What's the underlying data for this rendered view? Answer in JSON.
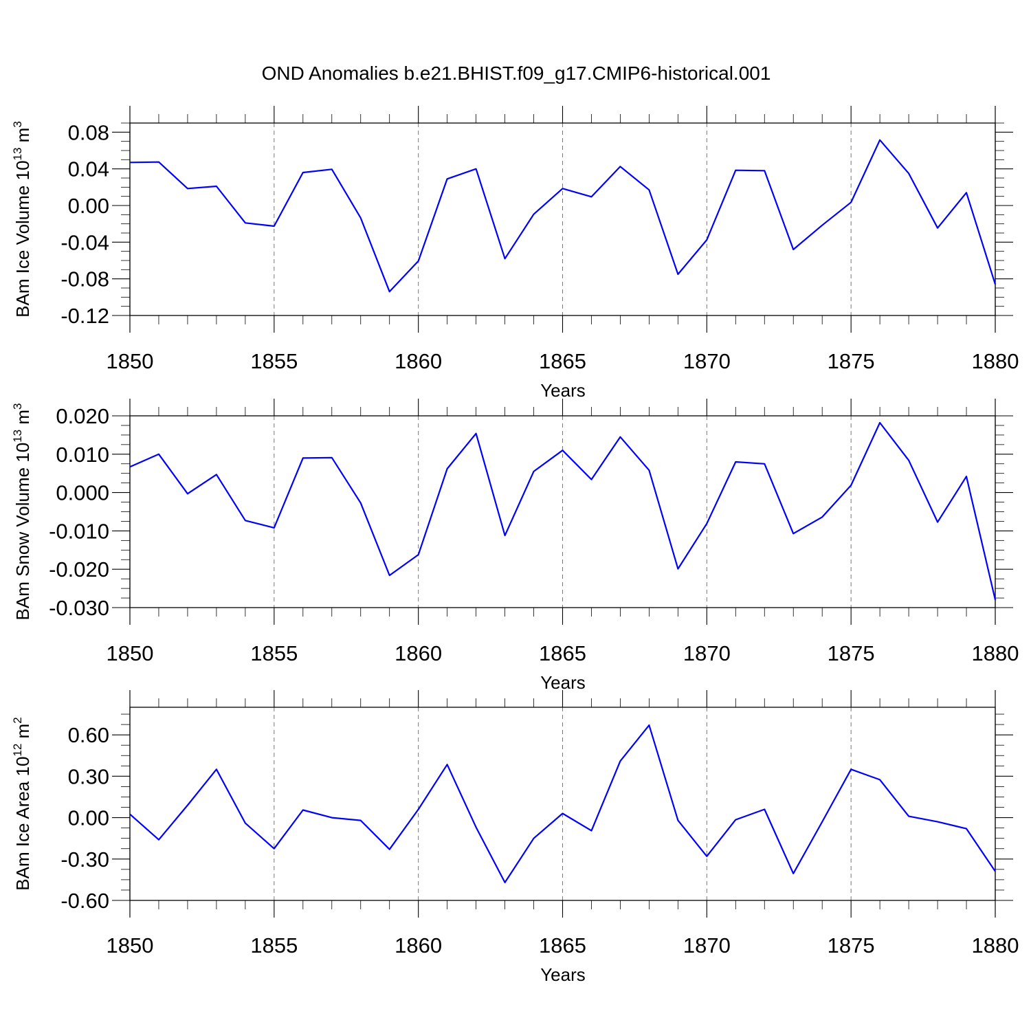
{
  "title": "OND Anomalies b.e21.BHIST.f09_g17.CMIP6-historical.001",
  "colors": {
    "series": "#0000ff",
    "axes": "#000000",
    "grid": "#777777"
  },
  "chart_data": [
    {
      "type": "line",
      "ylabel": "BAm Ice Volume 10",
      "ylabel_exp": "13",
      "ylabel_unit": " m",
      "ylabel_unit_exp": "3",
      "xlabel": "Years",
      "xlim": [
        1850,
        1880
      ],
      "ylim": [
        -0.12,
        0.09
      ],
      "yticks": [
        -0.12,
        -0.08,
        -0.04,
        0.0,
        0.04,
        0.08
      ],
      "ytick_labels": [
        "-0.12",
        "-0.08",
        "-0.04",
        "0.00",
        "0.04",
        "0.08"
      ],
      "xticks": [
        1850,
        1855,
        1860,
        1865,
        1870,
        1875,
        1880
      ],
      "xtick_labels": [
        "1850",
        "1855",
        "1860",
        "1865",
        "1870",
        "1875",
        "1880"
      ],
      "grid": "dashed vertical at major x ticks",
      "x": [
        1850,
        1851,
        1852,
        1853,
        1854,
        1855,
        1856,
        1857,
        1858,
        1859,
        1860,
        1861,
        1862,
        1863,
        1864,
        1865,
        1866,
        1867,
        1868,
        1869,
        1870,
        1871,
        1872,
        1873,
        1874,
        1875,
        1876,
        1877,
        1878,
        1879,
        1880
      ],
      "values": [
        0.047,
        0.0475,
        0.0185,
        0.021,
        -0.019,
        -0.0225,
        0.036,
        0.0395,
        -0.0135,
        -0.094,
        -0.0605,
        0.029,
        0.04,
        -0.058,
        -0.0095,
        0.0185,
        0.0095,
        0.0425,
        0.017,
        -0.075,
        -0.0375,
        0.0385,
        0.038,
        -0.048,
        -0.0215,
        0.0035,
        0.0715,
        0.035,
        -0.0245,
        0.014,
        -0.086
      ]
    },
    {
      "type": "line",
      "ylabel": "BAm Snow Volume 10",
      "ylabel_exp": "13",
      "ylabel_unit": " m",
      "ylabel_unit_exp": "3",
      "xlabel": "Years",
      "xlim": [
        1850,
        1880
      ],
      "ylim": [
        -0.03,
        0.02
      ],
      "yticks": [
        -0.03,
        -0.02,
        -0.01,
        0.0,
        0.01,
        0.02
      ],
      "ytick_labels": [
        "-0.030",
        "-0.020",
        "-0.010",
        "0.000",
        "0.010",
        "0.020"
      ],
      "xticks": [
        1850,
        1855,
        1860,
        1865,
        1870,
        1875,
        1880
      ],
      "xtick_labels": [
        "1850",
        "1855",
        "1860",
        "1865",
        "1870",
        "1875",
        "1880"
      ],
      "grid": "dashed vertical at major x ticks",
      "x": [
        1850,
        1851,
        1852,
        1853,
        1854,
        1855,
        1856,
        1857,
        1858,
        1859,
        1860,
        1861,
        1862,
        1863,
        1864,
        1865,
        1866,
        1867,
        1868,
        1869,
        1870,
        1871,
        1872,
        1873,
        1874,
        1875,
        1876,
        1877,
        1878,
        1879,
        1880
      ],
      "values": [
        0.0067,
        0.01,
        -0.0003,
        0.0047,
        -0.0073,
        -0.0092,
        0.009,
        0.0091,
        -0.0027,
        -0.0216,
        -0.0162,
        0.0062,
        0.0154,
        -0.0112,
        0.0055,
        0.011,
        0.0034,
        0.0145,
        0.0058,
        -0.0199,
        -0.0081,
        0.008,
        0.0075,
        -0.0107,
        -0.0064,
        0.0019,
        0.0182,
        0.0084,
        -0.0077,
        0.0042,
        -0.028
      ]
    },
    {
      "type": "line",
      "ylabel": "BAm Ice Area 10",
      "ylabel_exp": "12",
      "ylabel_unit": " m",
      "ylabel_unit_exp": "2",
      "xlabel": "Years",
      "xlim": [
        1850,
        1880
      ],
      "ylim": [
        -0.6,
        0.8
      ],
      "yticks": [
        -0.6,
        -0.3,
        0.0,
        0.3,
        0.6
      ],
      "ytick_labels": [
        "-0.60",
        "-0.30",
        "0.00",
        "0.30",
        "0.60"
      ],
      "xticks": [
        1850,
        1855,
        1860,
        1865,
        1870,
        1875,
        1880
      ],
      "xtick_labels": [
        "1850",
        "1855",
        "1860",
        "1865",
        "1870",
        "1875",
        "1880"
      ],
      "grid": "dashed vertical at major x ticks",
      "x": [
        1850,
        1851,
        1852,
        1853,
        1854,
        1855,
        1856,
        1857,
        1858,
        1859,
        1860,
        1861,
        1862,
        1863,
        1864,
        1865,
        1866,
        1867,
        1868,
        1869,
        1870,
        1871,
        1872,
        1873,
        1874,
        1875,
        1876,
        1877,
        1878,
        1879,
        1880
      ],
      "values": [
        0.025,
        -0.16,
        0.09,
        0.35,
        -0.04,
        -0.225,
        0.055,
        0.0,
        -0.02,
        -0.23,
        0.06,
        0.385,
        -0.07,
        -0.47,
        -0.15,
        0.03,
        -0.095,
        0.41,
        0.67,
        -0.02,
        -0.28,
        -0.015,
        0.06,
        -0.405,
        -0.03,
        0.35,
        0.275,
        0.01,
        -0.03,
        -0.08,
        -0.39
      ]
    }
  ]
}
